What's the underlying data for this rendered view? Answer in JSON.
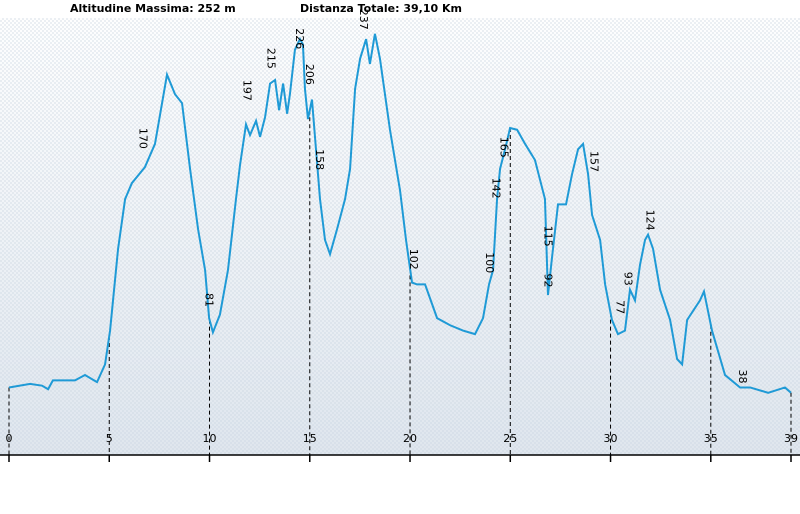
{
  "header": {
    "max_altitude": "Altitudine Massima: 252 m",
    "total_distance": "Distanza Totale: 39,10 Km"
  },
  "chart_data": {
    "type": "line",
    "color": "#1f9ad6",
    "x": [
      0,
      1.05,
      1.65,
      1.95,
      2.19,
      3.29,
      3.79,
      4.39,
      4.79,
      5.04,
      5.44,
      5.79,
      6.13,
      6.78,
      7.28,
      7.88,
      8.28,
      8.63,
      9.03,
      9.43,
      9.78,
      9.98,
      10.17,
      10.52,
      10.92,
      11.12,
      11.32,
      11.52,
      11.82,
      12.02,
      12.32,
      12.52,
      12.77,
      13.02,
      13.27,
      13.47,
      13.67,
      13.87,
      14.01,
      14.26,
      14.51,
      14.66,
      14.76,
      14.91,
      15.11,
      15.31,
      15.51,
      15.76,
      16.01,
      16.36,
      16.76,
      17.01,
      17.26,
      17.51,
      17.81,
      18.0,
      18.25,
      18.5,
      19.0,
      19.5,
      19.8,
      20.1,
      20.35,
      20.75,
      21.35,
      22.0,
      22.64,
      23.24,
      23.64,
      23.94,
      24.14,
      24.34,
      24.49,
      24.74,
      24.99,
      25.34,
      25.74,
      26.23,
      26.73,
      26.88,
      27.08,
      27.38,
      27.78,
      28.08,
      28.38,
      28.63,
      28.88,
      29.08,
      29.48,
      29.73,
      30.07,
      30.37,
      30.72,
      30.97,
      31.22,
      31.47,
      31.72,
      31.87,
      32.12,
      32.47,
      32.97,
      33.32,
      33.57,
      33.82,
      34.46,
      34.66,
      35.06,
      35.71,
      36.46,
      36.96,
      37.86,
      38.7,
      39.0
    ],
    "values": [
      38,
      40,
      39,
      37,
      42,
      42,
      45,
      41,
      51,
      70,
      116,
      144,
      153,
      162,
      175,
      214,
      203,
      198,
      161,
      127,
      104,
      77,
      69,
      79,
      104,
      124,
      144,
      163,
      186,
      180,
      188,
      179,
      190,
      209,
      211,
      194,
      209,
      192,
      203,
      228,
      234,
      231,
      206,
      189,
      200,
      172,
      144,
      121,
      113,
      127,
      144,
      161,
      206,
      223,
      234,
      220,
      237,
      223,
      183,
      149,
      121,
      97,
      96,
      96,
      77,
      73,
      70,
      68,
      77,
      96,
      104,
      144,
      161,
      172,
      184,
      183,
      175,
      166,
      144,
      90,
      111,
      141,
      141,
      158,
      172,
      175,
      158,
      135,
      121,
      96,
      76,
      68,
      70,
      93,
      87,
      107,
      121,
      124,
      116,
      93,
      76,
      54,
      51,
      76,
      87,
      92,
      70,
      45,
      38,
      38,
      35,
      38,
      35
    ],
    "labels": {
      "x": [
        6.7,
        10.0,
        11.9,
        13.1,
        14.5,
        15.0,
        15.5,
        17.7,
        20.2,
        24.0,
        24.3,
        24.7,
        26.9,
        26.9,
        29.2,
        30.5,
        30.9,
        32.0,
        36.6
      ],
      "values": [
        170,
        81,
        197,
        215,
        226,
        206,
        158,
        237,
        102,
        100,
        142,
        165,
        115,
        92,
        157,
        77,
        93,
        124,
        38
      ]
    },
    "xlim": [
      0,
      39
    ],
    "ylim": [
      0,
      256
    ],
    "xticks": [
      0,
      5,
      10,
      15,
      20,
      25,
      30,
      35,
      39
    ]
  }
}
